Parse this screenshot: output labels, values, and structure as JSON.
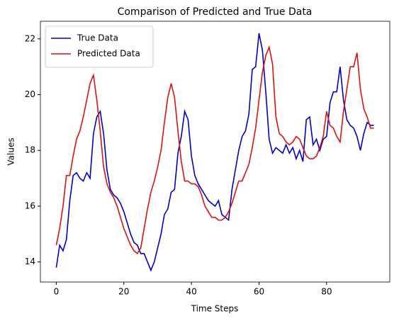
{
  "chart_data": {
    "type": "line",
    "title": "Comparison of Predicted and True Data",
    "x_label": "Time Steps",
    "y_label": "Values",
    "x": [
      0,
      1,
      2,
      3,
      4,
      5,
      6,
      7,
      8,
      9,
      10,
      11,
      12,
      13,
      14,
      15,
      16,
      17,
      18,
      19,
      20,
      21,
      22,
      23,
      24,
      25,
      26,
      27,
      28,
      29,
      30,
      31,
      32,
      33,
      34,
      35,
      36,
      37,
      38,
      39,
      40,
      41,
      42,
      43,
      44,
      45,
      46,
      47,
      48,
      49,
      50,
      51,
      52,
      53,
      54,
      55,
      56,
      57,
      58,
      59,
      60,
      61,
      62,
      63,
      64,
      65,
      66,
      67,
      68,
      69,
      70,
      71,
      72,
      73,
      74,
      75,
      76,
      77,
      78,
      79,
      80,
      81,
      82,
      83,
      84,
      85,
      86,
      87,
      88,
      89,
      90,
      91,
      92,
      93,
      94
    ],
    "series": [
      {
        "name": "True Data",
        "color": "#0000cc",
        "values": [
          13.8,
          14.6,
          14.4,
          14.8,
          16.2,
          17.1,
          17.2,
          17.0,
          16.9,
          17.2,
          17.0,
          18.6,
          19.2,
          19.4,
          18.6,
          17.3,
          16.6,
          16.4,
          16.3,
          16.1,
          15.8,
          15.4,
          15.0,
          14.7,
          14.6,
          14.3,
          14.3,
          14.0,
          13.7,
          14.0,
          14.5,
          15.0,
          15.7,
          15.9,
          16.5,
          16.6,
          17.9,
          18.5,
          19.4,
          19.1,
          17.8,
          17.1,
          16.8,
          16.6,
          16.4,
          16.2,
          16.1,
          16.0,
          16.2,
          15.7,
          15.6,
          15.5,
          16.6,
          17.3,
          18.0,
          18.5,
          18.7,
          19.3,
          20.9,
          21.0,
          22.2,
          21.6,
          20.1,
          18.4,
          17.9,
          18.1,
          18.0,
          17.9,
          18.2,
          17.9,
          18.1,
          17.7,
          18.0,
          17.6,
          19.1,
          19.2,
          18.2,
          18.4,
          18.0,
          18.4,
          18.5,
          19.7,
          20.1,
          20.1,
          21.0,
          19.8,
          19.1,
          18.9,
          18.8,
          18.5,
          18.0,
          18.6,
          19.0,
          18.9,
          18.9
        ]
      },
      {
        "name": "Predicted Data",
        "color": "#dd1111",
        "values": [
          14.6,
          15.2,
          16.0,
          17.1,
          17.1,
          17.8,
          18.4,
          18.7,
          19.2,
          19.8,
          20.4,
          20.7,
          19.8,
          18.7,
          17.4,
          16.8,
          16.5,
          16.3,
          16.0,
          15.6,
          15.2,
          14.9,
          14.6,
          14.4,
          14.3,
          14.5,
          15.2,
          15.9,
          16.5,
          16.9,
          17.4,
          18.0,
          19.0,
          19.9,
          20.4,
          19.9,
          18.7,
          17.6,
          16.9,
          16.9,
          16.8,
          16.8,
          16.7,
          16.4,
          16.0,
          15.8,
          15.6,
          15.6,
          15.5,
          15.5,
          15.6,
          15.8,
          16.1,
          16.5,
          16.9,
          16.9,
          17.2,
          17.5,
          18.1,
          18.8,
          19.8,
          20.8,
          21.4,
          21.7,
          21.1,
          19.2,
          18.6,
          18.5,
          18.3,
          18.2,
          18.3,
          18.5,
          18.4,
          18.1,
          17.8,
          17.7,
          17.7,
          17.8,
          18.1,
          18.5,
          19.4,
          18.9,
          18.8,
          18.5,
          18.3,
          19.4,
          20.2,
          21.0,
          21.0,
          21.5,
          20.2,
          19.5,
          19.2,
          18.8,
          18.8
        ]
      }
    ],
    "xlim": [
      -4.7,
      98.7
    ],
    "ylim": [
      13.28,
      22.63
    ],
    "xticks": [
      0,
      20,
      40,
      60,
      80
    ],
    "yticks": [
      14,
      16,
      18,
      20,
      22
    ],
    "grid": false,
    "legend": "upper left"
  }
}
